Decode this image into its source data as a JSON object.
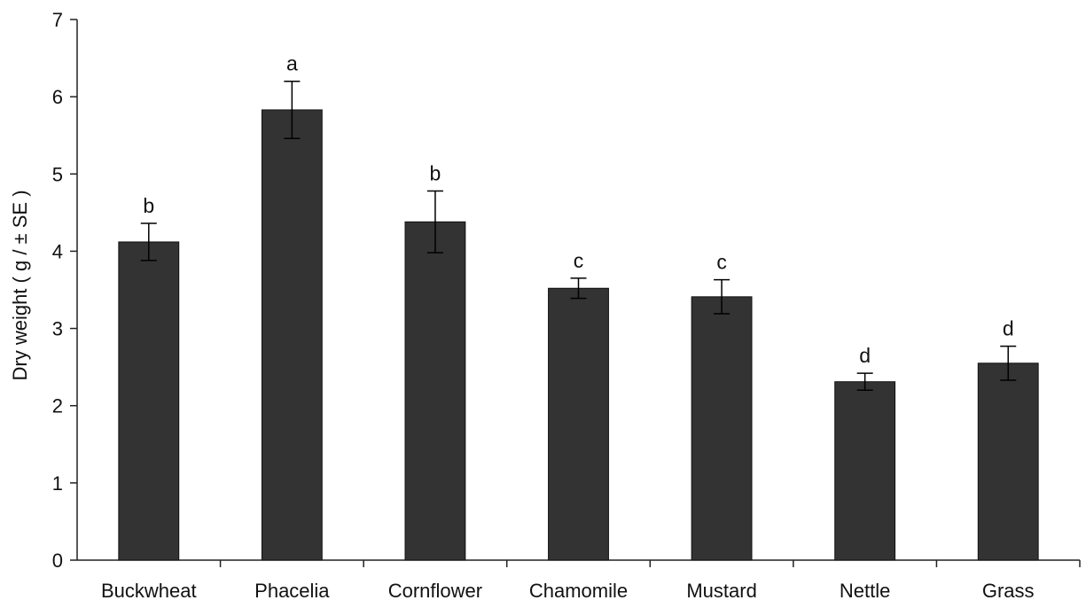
{
  "chart_data": {
    "type": "bar",
    "title": "",
    "xlabel": "",
    "ylabel": "Dry weight ( g / ± SE )",
    "ylim": [
      0,
      7
    ],
    "yticks": [
      0,
      1,
      2,
      3,
      4,
      5,
      6,
      7
    ],
    "grid": false,
    "bar_color": "#333333",
    "categories": [
      "Buckwheat",
      "Phacelia",
      "Cornflower",
      "Chamomile",
      "Mustard",
      "Nettle",
      "Grass"
    ],
    "values": [
      4.12,
      5.83,
      4.38,
      3.52,
      3.41,
      2.31,
      2.55
    ],
    "errors": [
      0.24,
      0.37,
      0.4,
      0.13,
      0.22,
      0.11,
      0.22
    ],
    "significance_labels": [
      "b",
      "a",
      "b",
      "c",
      "c",
      "d",
      "d"
    ]
  }
}
